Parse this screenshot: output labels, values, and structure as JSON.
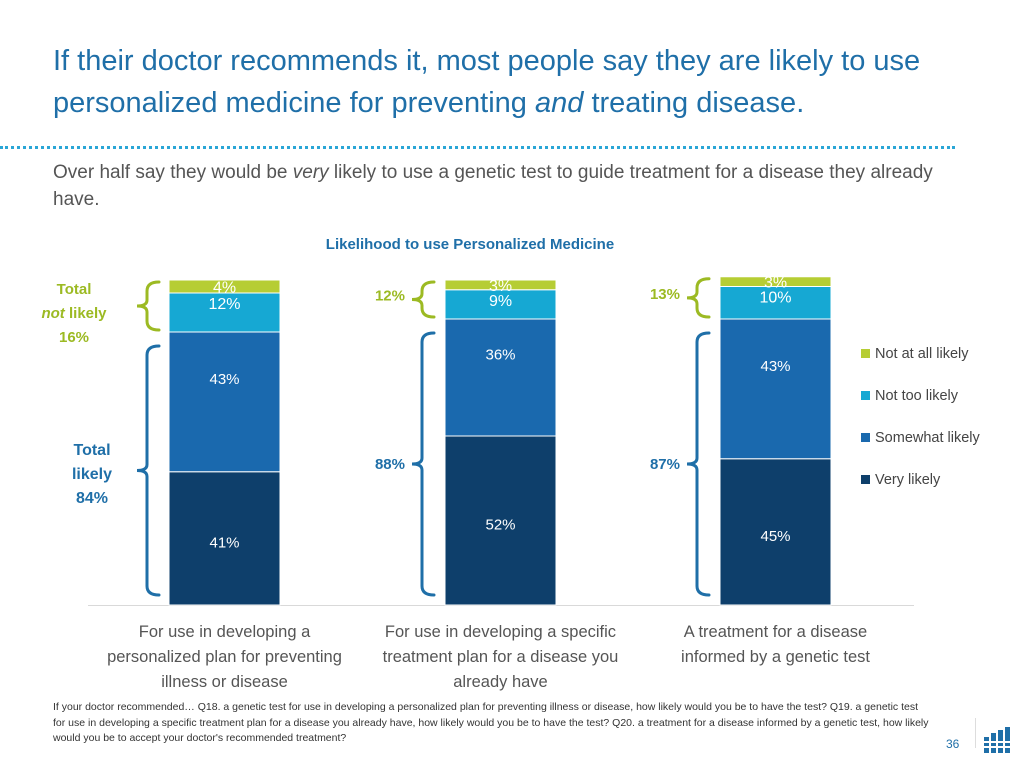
{
  "title": {
    "part1": "If their doctor recommends it, most people say they are likely to use personalized medicine for preventing ",
    "emphasis": "and",
    "part2": " treating disease."
  },
  "subtitle": {
    "part1": "Over half say they would be ",
    "emphasis": "very",
    "part2": " likely to use a genetic test to guide treatment for a disease they already have."
  },
  "chart_data": {
    "type": "bar",
    "stacked": true,
    "title": "Likelihood to use Personalized Medicine",
    "categories": [
      [
        "For use in developing a",
        "personalized plan for preventing",
        "illness or disease"
      ],
      [
        "For use in developing a specific",
        "treatment plan for a disease you",
        "already have"
      ],
      [
        "A treatment for a disease",
        "informed by a genetic test"
      ]
    ],
    "series": [
      {
        "name": "Very likely",
        "color": "#0e3f6b",
        "values": [
          41,
          52,
          45
        ],
        "labels": [
          "41%",
          "52%",
          "45%"
        ]
      },
      {
        "name": "Somewhat likely",
        "color": "#1a69ae",
        "values": [
          43,
          36,
          43
        ],
        "labels": [
          "43%",
          "36%",
          "43%"
        ]
      },
      {
        "name": "Not too likely",
        "color": "#16a8d3",
        "values": [
          12,
          9,
          10
        ],
        "labels": [
          "12%",
          "9%",
          "10%"
        ]
      },
      {
        "name": "Not at all likely",
        "color": "#b6cd34",
        "values": [
          4,
          3,
          3
        ],
        "labels": [
          "4%",
          "3%",
          "3%"
        ]
      }
    ],
    "legend_order": [
      "Not at all likely",
      "Not too likely",
      "Somewhat likely",
      "Very likely"
    ],
    "legend_position": "right",
    "ylim": [
      0,
      100
    ],
    "totals_not_likely": [
      "16%",
      "12%",
      "13%"
    ],
    "totals_likely": [
      "84%",
      "88%",
      "87%"
    ]
  },
  "annotations": {
    "total_not_likely_word1": "Total",
    "total_not_likely_word2": "not",
    "total_not_likely_word3": " likely",
    "total_likely_word1": "Total",
    "total_likely_word2": "likely"
  },
  "colors": {
    "title": "#1f6fa8",
    "bracket": "#1f6fa8",
    "not_likely_accent": "#9cba23",
    "likely_accent": "#1f6fa8"
  },
  "footnote": "If your doctor recommended… Q18. a genetic test for use in developing a personalized plan for preventing illness or disease, how likely would you be to have the test? Q19. a genetic test for use in developing a specific treatment plan for a disease you already have, how likely would you be to have the test? Q20. a treatment for a disease informed by a genetic test, how likely would you be to accept your doctor's recommended treatment?",
  "page_number": "36",
  "logo_icon": "company-logo-icon"
}
